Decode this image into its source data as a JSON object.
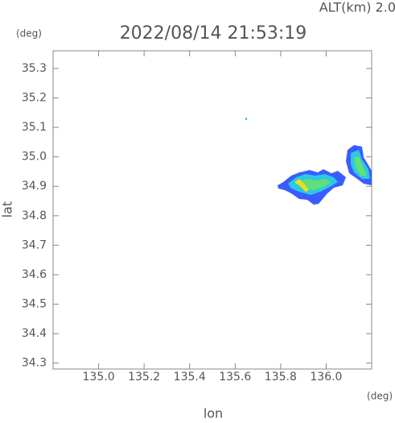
{
  "chart_data": {
    "type": "map",
    "title": "2022/08/14 21:53:19",
    "altitude_label": "ALT(km) 2.0",
    "x_label": "lon",
    "x_unit": "(deg)",
    "y_label": "lat",
    "y_unit": "(deg)",
    "xlim": [
      134.8,
      136.2
    ],
    "xticks": [
      {
        "value": 135,
        "label": "135.0"
      },
      135.2,
      135.4,
      135.6,
      135.8,
      {
        "value": 136,
        "label": "136.0"
      }
    ],
    "ylim": [
      34.28,
      35.36
    ],
    "yticks": [
      34.3,
      34.4,
      34.5,
      34.6,
      34.7,
      34.8,
      34.9,
      {
        "value": 35,
        "label": "35.0"
      },
      35.1,
      35.2,
      35.3
    ]
  }
}
